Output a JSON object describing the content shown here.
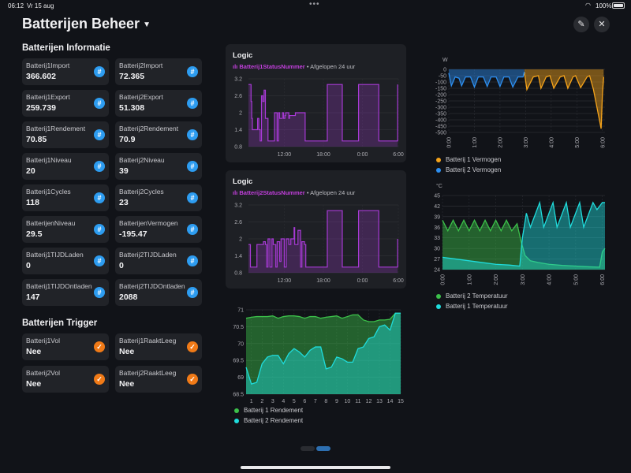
{
  "status": {
    "time": "06:12",
    "date": "Vr 15 aug",
    "battery": "100%"
  },
  "header": {
    "title": "Batterijen Beheer"
  },
  "info": {
    "title": "Batterijen Informatie",
    "tiles": [
      {
        "label": "Batterij1Import",
        "value": "366.602"
      },
      {
        "label": "Batterij2Import",
        "value": "72.365"
      },
      {
        "label": "Batterij1Export",
        "value": "259.739"
      },
      {
        "label": "Batterij2Export",
        "value": "51.308"
      },
      {
        "label": "Batterij1Rendement",
        "value": "70.85"
      },
      {
        "label": "Batterij2Rendement",
        "value": "70.9"
      },
      {
        "label": "Batterij1Niveau",
        "value": "20"
      },
      {
        "label": "Batterij2Niveau",
        "value": "39"
      },
      {
        "label": "Batterij1Cycles",
        "value": "118"
      },
      {
        "label": "Batterij2Cycles",
        "value": "23"
      },
      {
        "label": "BatterijenNiveau",
        "value": "29.5"
      },
      {
        "label": "BatterijenVermogen",
        "value": "-195.47"
      },
      {
        "label": "Batterij1TIJDLaden",
        "value": "0"
      },
      {
        "label": "Batterij2TIJDLaden",
        "value": "0"
      },
      {
        "label": "Batterij1TIJDOntladen",
        "value": "147"
      },
      {
        "label": "Batterij2TIJDOntladen",
        "value": "2088"
      }
    ]
  },
  "trigger": {
    "title": "Batterijen Trigger",
    "tiles": [
      {
        "label": "Batterij1Vol",
        "value": "Nee"
      },
      {
        "label": "Batterij1RaaktLeeg",
        "value": "Nee"
      },
      {
        "label": "Batterij2Vol",
        "value": "Nee"
      },
      {
        "label": "Batterij2RaaktLeeg",
        "value": "Nee"
      }
    ]
  },
  "colors": {
    "purple": "#a83ad6",
    "orange": "#f5a31a",
    "blue": "#2d8ff0",
    "green": "#3cc04a",
    "cyan": "#1fdcdc"
  },
  "chart_data": [
    {
      "type": "line",
      "title": "Logic",
      "entity": "Batterij1StatusNummer",
      "period": "• Afgelopen 24 uur",
      "yticks": [
        "3.2",
        "2.6",
        "2",
        "1.4",
        "0.8"
      ],
      "xticks": [
        "12:00",
        "18:00",
        "0:00",
        "6:00"
      ],
      "ylim": [
        0.8,
        3.2
      ],
      "x_hours": [
        0,
        0.3,
        0.4,
        0.5,
        0.6,
        1.3,
        1.4,
        1.6,
        1.8,
        2.0,
        2.2,
        2.4,
        2.6,
        3.0,
        3.2,
        4.0,
        4.4,
        4.6,
        4.8,
        5.2,
        5.4,
        5.6,
        5.7,
        6.2,
        6.3,
        7.1,
        7.2,
        8.6,
        8.7,
        9.2,
        9.3,
        12.0,
        12.1,
        14.3,
        14.4,
        16.8,
        16.9,
        19.9,
        20.0,
        22.8,
        22.9
      ],
      "values": [
        3.0,
        3.0,
        2.4,
        1.8,
        1.4,
        1.4,
        1.8,
        1.4,
        1.0,
        2.6,
        2.4,
        2.8,
        1.8,
        1.0,
        1.0,
        2.0,
        1.0,
        2.0,
        1.8,
        2.0,
        1.8,
        1.9,
        2.0,
        1.8,
        1.9,
        1.9,
        2.0,
        2.0,
        1.0,
        1.0,
        1.0,
        1.0,
        3.0,
        3.0,
        1.0,
        1.0,
        3.0,
        3.0,
        1.0,
        1.0,
        3.0
      ]
    },
    {
      "type": "line",
      "title": "Logic",
      "entity": "Batterij2StatusNummer",
      "period": "• Afgelopen 24 uur",
      "yticks": [
        "3.2",
        "2.6",
        "2",
        "1.4",
        "0.8"
      ],
      "xticks": [
        "12:00",
        "18:00",
        "0:00",
        "6:00"
      ],
      "ylim": [
        0.8,
        3.2
      ],
      "x_hours": [
        0,
        0.2,
        0.3,
        1.2,
        1.3,
        2.2,
        2.3,
        2.6,
        2.8,
        3.0,
        3.3,
        3.6,
        3.8,
        4.2,
        4.4,
        4.8,
        5.0,
        5.5,
        5.8,
        6.2,
        6.5,
        7.0,
        7.1,
        7.4,
        7.6,
        8.0,
        8.2,
        8.6,
        8.8,
        9.2,
        9.4,
        12.0,
        12.1,
        14.3,
        14.4,
        16.8,
        16.9,
        19.9,
        20.0,
        22.8,
        22.9
      ],
      "values": [
        1.8,
        1.8,
        1.0,
        1.0,
        1.8,
        1.8,
        1.9,
        1.8,
        1.0,
        2.0,
        1.0,
        2.0,
        1.8,
        1.0,
        1.9,
        1.2,
        2.0,
        1.0,
        2.0,
        1.8,
        2.0,
        2.4,
        1.8,
        1.8,
        2.3,
        1.0,
        1.9,
        1.8,
        1.0,
        1.0,
        1.0,
        1.0,
        3.0,
        3.0,
        1.0,
        1.0,
        3.0,
        3.0,
        1.0,
        1.0,
        2.0
      ]
    },
    {
      "type": "area",
      "ylim": [
        68.5,
        71
      ],
      "yticks": [
        "71",
        "70.5",
        "70",
        "69.5",
        "69",
        "68.5"
      ],
      "xticks": [
        "1",
        "2",
        "3",
        "4",
        "5",
        "6",
        "7",
        "8",
        "9",
        "10",
        "11",
        "12",
        "13",
        "14",
        "15"
      ],
      "x": [
        0.5,
        1,
        1.5,
        2,
        2.5,
        3,
        3.5,
        4,
        4.5,
        5,
        5.5,
        6,
        6.5,
        7,
        7.5,
        8,
        8.5,
        9,
        9.5,
        10,
        10.5,
        11,
        11.5,
        12,
        12.5,
        13,
        13.5,
        14,
        14.5,
        15
      ],
      "series": [
        {
          "name": "Batterij 1 Rendement",
          "color": "#3cc04a",
          "values": [
            70.75,
            70.78,
            70.8,
            70.8,
            70.8,
            70.82,
            70.75,
            70.8,
            70.82,
            70.82,
            70.8,
            70.75,
            70.8,
            70.8,
            70.75,
            70.78,
            70.8,
            70.82,
            70.75,
            70.8,
            70.85,
            70.85,
            70.7,
            70.65,
            70.65,
            70.7,
            70.7,
            70.72,
            70.9,
            70.9
          ]
        },
        {
          "name": "Batterij 2 Rendement",
          "color": "#1fdcdc",
          "values": [
            69.3,
            68.8,
            68.85,
            69.4,
            69.6,
            69.65,
            69.65,
            69.4,
            69.7,
            69.85,
            69.75,
            69.6,
            69.8,
            69.9,
            69.9,
            69.25,
            69.3,
            69.6,
            69.55,
            69.45,
            69.45,
            69.85,
            69.9,
            70.15,
            70.2,
            70.5,
            70.55,
            70.4,
            70.9,
            70.9
          ]
        }
      ]
    },
    {
      "type": "area",
      "ylabel": "W",
      "ylim": [
        -500,
        0
      ],
      "yticks": [
        "0",
        "-50",
        "-100",
        "-150",
        "-200",
        "-250",
        "-300",
        "-350",
        "-400",
        "-450",
        "-500"
      ],
      "xticks": [
        "0:00",
        "1:00",
        "2:00",
        "3:00",
        "4:00",
        "5:00",
        "6:00"
      ],
      "series": [
        {
          "name": "Batterij 1 Vermogen",
          "color": "#f5a31a",
          "x": [
            2.95,
            3.05,
            3.3,
            3.5,
            3.6,
            3.8,
            3.95,
            4.1,
            4.35,
            4.5,
            4.65,
            4.85,
            4.95,
            5.15,
            5.4,
            5.5,
            5.65,
            5.95,
            6.0,
            6.05
          ],
          "values": [
            -20,
            -160,
            -60,
            -50,
            -150,
            -60,
            -50,
            -150,
            -60,
            -50,
            -150,
            -60,
            -50,
            -145,
            -60,
            -50,
            -160,
            -470,
            -200,
            -60
          ]
        },
        {
          "name": "Batterij 2 Vermogen",
          "color": "#2d8ff0",
          "x": [
            0.0,
            0.1,
            0.25,
            0.4,
            0.5,
            0.65,
            0.85,
            1.0,
            1.15,
            1.35,
            1.5,
            1.65,
            1.85,
            2.0,
            2.15,
            2.35,
            2.5,
            2.7,
            2.9,
            2.95
          ],
          "values": [
            -30,
            -130,
            -60,
            -70,
            -130,
            -60,
            -60,
            -140,
            -60,
            -60,
            -135,
            -60,
            -60,
            -135,
            -60,
            -60,
            -140,
            -60,
            -60,
            -20
          ]
        }
      ]
    },
    {
      "type": "area",
      "ylabel": "°C",
      "ylim": [
        24,
        45
      ],
      "yticks": [
        "45",
        "42",
        "39",
        "36",
        "33",
        "30",
        "27",
        "24"
      ],
      "xticks": [
        "0:00",
        "1:00",
        "2:00",
        "3:00",
        "4:00",
        "5:00",
        "6:00"
      ],
      "series": [
        {
          "name": "Batterij 2 Temperatuur",
          "color": "#3cc04a",
          "x": [
            0.0,
            0.2,
            0.4,
            0.6,
            0.8,
            1.0,
            1.2,
            1.4,
            1.6,
            1.8,
            2.0,
            2.2,
            2.4,
            2.6,
            2.8,
            2.95,
            3.1,
            3.3,
            3.6,
            4.0,
            4.5,
            5.0,
            5.5,
            5.9,
            6.0,
            6.1
          ],
          "values": [
            38,
            35,
            38,
            35,
            38,
            35,
            38,
            35,
            38,
            35,
            38,
            35,
            38,
            35,
            37,
            32,
            28,
            26.5,
            26,
            25.5,
            25.2,
            25,
            24.8,
            24.7,
            29,
            30
          ]
        },
        {
          "name": "Batterij 1 Temperatuur",
          "color": "#1fdcdc",
          "x": [
            0.0,
            0.5,
            1.0,
            1.5,
            2.0,
            2.5,
            2.9,
            3.0,
            3.15,
            3.3,
            3.5,
            3.65,
            3.8,
            4.0,
            4.15,
            4.3,
            4.5,
            4.65,
            4.8,
            5.0,
            5.15,
            5.3,
            5.5,
            5.65,
            5.8,
            6.0,
            6.1
          ],
          "values": [
            27.5,
            27,
            26.5,
            26,
            25.5,
            25.3,
            25,
            33,
            40,
            36,
            40,
            43,
            36,
            40,
            43,
            36,
            40,
            43,
            36,
            40,
            43,
            36,
            40,
            43,
            41,
            43,
            43
          ]
        }
      ]
    }
  ]
}
